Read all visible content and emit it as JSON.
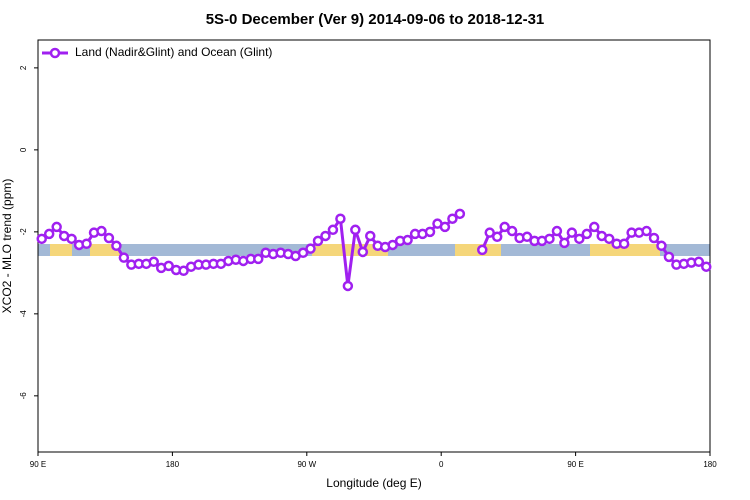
{
  "chart_data": {
    "type": "line",
    "title": "5S-0 December (Ver 9)   2014-09-06 to 2018-12-31",
    "x_label": "Longitude (deg E)",
    "y_label": "XCO2 - MLO trend (ppm)",
    "xlim": [
      90,
      540
    ],
    "xticks": [
      {
        "value": 90,
        "label": "90 E"
      },
      180,
      {
        "value": 270,
        "label": "90 W"
      },
      {
        "value": 360,
        "label": "0"
      },
      {
        "value": 450,
        "label": "90 E"
      },
      {
        "value": 540,
        "label": "180"
      }
    ],
    "ylim": [
      -7.37,
      2.68
    ],
    "yticks": [
      2,
      0,
      -2,
      -4,
      -6
    ],
    "legend": "top-left",
    "x": [
      92.5,
      97.5,
      102.5,
      107.5,
      112.5,
      117.5,
      122.5,
      127.5,
      132.5,
      137.5,
      142.5,
      147.5,
      152.5,
      157.5,
      162.5,
      167.5,
      172.5,
      177.5,
      182.5,
      187.5,
      192.5,
      197.5,
      202.5,
      207.5,
      212.5,
      217.5,
      222.5,
      227.5,
      232.5,
      237.5,
      242.5,
      247.5,
      252.5,
      257.5,
      262.5,
      267.5,
      272.5,
      277.5,
      282.5,
      287.5,
      292.5,
      297.5,
      302.5,
      307.5,
      312.5,
      317.5,
      322.5,
      327.5,
      332.5,
      337.5,
      342.5,
      347.5,
      352.5,
      357.5,
      362.5,
      367.5,
      372.5,
      377.5,
      382.5,
      387.5,
      392.5,
      397.5,
      402.5,
      407.5,
      412.5,
      417.5,
      422.5,
      427.5,
      432.5,
      437.5,
      442.5,
      447.5,
      452.5,
      457.5,
      462.5,
      467.5,
      472.5,
      477.5,
      482.5,
      487.5,
      492.5,
      497.5,
      502.5,
      507.5,
      512.5,
      517.5,
      522.5,
      527.5,
      532.5,
      537.5
    ],
    "series": [
      {
        "name": "Land (Nadir&Glint) and Ocean (Glint)",
        "color": "#a020f0",
        "values": [
          -2.17,
          -2.05,
          -1.88,
          -2.1,
          -2.17,
          -2.32,
          -2.29,
          -2.02,
          -1.98,
          -2.15,
          -2.34,
          -2.63,
          -2.8,
          -2.78,
          -2.78,
          -2.73,
          -2.88,
          -2.83,
          -2.93,
          -2.95,
          -2.85,
          -2.8,
          -2.8,
          -2.78,
          -2.78,
          -2.71,
          -2.68,
          -2.71,
          -2.66,
          -2.66,
          -2.51,
          -2.54,
          -2.51,
          -2.54,
          -2.59,
          -2.51,
          -2.41,
          -2.22,
          -2.1,
          -1.95,
          -1.68,
          -3.32,
          -1.95,
          -2.49,
          -2.1,
          -2.34,
          -2.37,
          -2.32,
          -2.22,
          -2.2,
          -2.05,
          -2.05,
          -2.0,
          -1.8,
          -1.88,
          -1.68,
          -1.56,
          null,
          null,
          -2.44,
          -2.02,
          -2.12,
          -1.88,
          -1.98,
          -2.15,
          -2.12,
          -2.22,
          -2.22,
          -2.17,
          -1.98,
          -2.27,
          -2.02,
          -2.17,
          -2.05,
          -1.88,
          -2.1,
          -2.17,
          -2.29,
          -2.29,
          -2.02,
          -2.02,
          -1.98,
          -2.15,
          -2.34,
          -2.61,
          -2.8,
          -2.78,
          -2.75,
          -2.73,
          -2.85
        ]
      }
    ]
  }
}
